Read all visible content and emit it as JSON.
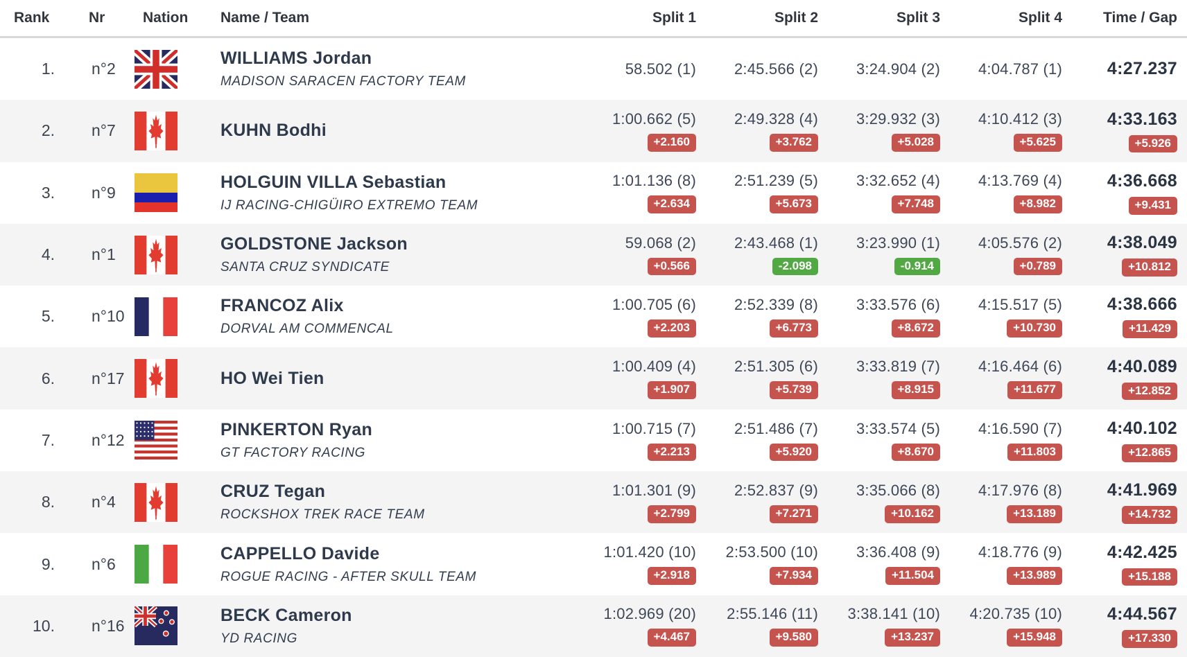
{
  "table": {
    "headers": {
      "rank": "Rank",
      "nr": "Nr",
      "nation": "Nation",
      "name_team": "Name / Team",
      "split1": "Split 1",
      "split2": "Split 2",
      "split3": "Split 3",
      "split4": "Split 4",
      "time_gap": "Time / Gap"
    },
    "rows": [
      {
        "rank": "1.",
        "nr": "n°2",
        "nation": "gbr",
        "nation_icon": "flag-great-britain-icon",
        "name": "WILLIAMS Jordan",
        "team": "MADISON SARACEN FACTORY TEAM",
        "splits": [
          {
            "value": "58.502 (1)",
            "gap": null
          },
          {
            "value": "2:45.566 (2)",
            "gap": null
          },
          {
            "value": "3:24.904 (2)",
            "gap": null
          },
          {
            "value": "4:04.787 (1)",
            "gap": null
          }
        ],
        "time": "4:27.237",
        "time_gap": null
      },
      {
        "rank": "2.",
        "nr": "n°7",
        "nation": "can",
        "nation_icon": "flag-canada-icon",
        "name": "KUHN Bodhi",
        "team": null,
        "splits": [
          {
            "value": "1:00.662 (5)",
            "gap": "+2.160"
          },
          {
            "value": "2:49.328 (4)",
            "gap": "+3.762"
          },
          {
            "value": "3:29.932 (3)",
            "gap": "+5.028"
          },
          {
            "value": "4:10.412 (3)",
            "gap": "+5.625"
          }
        ],
        "time": "4:33.163",
        "time_gap": "+5.926"
      },
      {
        "rank": "3.",
        "nr": "n°9",
        "nation": "col",
        "nation_icon": "flag-colombia-icon",
        "name": "HOLGUIN VILLA Sebastian",
        "team": "IJ RACING-CHIGÜIRO EXTREMO TEAM",
        "splits": [
          {
            "value": "1:01.136 (8)",
            "gap": "+2.634"
          },
          {
            "value": "2:51.239 (5)",
            "gap": "+5.673"
          },
          {
            "value": "3:32.652 (4)",
            "gap": "+7.748"
          },
          {
            "value": "4:13.769 (4)",
            "gap": "+8.982"
          }
        ],
        "time": "4:36.668",
        "time_gap": "+9.431"
      },
      {
        "rank": "4.",
        "nr": "n°1",
        "nation": "can",
        "nation_icon": "flag-canada-icon",
        "name": "GOLDSTONE Jackson",
        "team": "SANTA CRUZ SYNDICATE",
        "splits": [
          {
            "value": "59.068 (2)",
            "gap": "+0.566"
          },
          {
            "value": "2:43.468 (1)",
            "gap": "-2.098"
          },
          {
            "value": "3:23.990 (1)",
            "gap": "-0.914"
          },
          {
            "value": "4:05.576 (2)",
            "gap": "+0.789"
          }
        ],
        "time": "4:38.049",
        "time_gap": "+10.812"
      },
      {
        "rank": "5.",
        "nr": "n°10",
        "nation": "fra",
        "nation_icon": "flag-france-icon",
        "name": "FRANCOZ Alix",
        "team": "DORVAL AM COMMENCAL",
        "splits": [
          {
            "value": "1:00.705 (6)",
            "gap": "+2.203"
          },
          {
            "value": "2:52.339 (8)",
            "gap": "+6.773"
          },
          {
            "value": "3:33.576 (6)",
            "gap": "+8.672"
          },
          {
            "value": "4:15.517 (5)",
            "gap": "+10.730"
          }
        ],
        "time": "4:38.666",
        "time_gap": "+11.429"
      },
      {
        "rank": "6.",
        "nr": "n°17",
        "nation": "can",
        "nation_icon": "flag-canada-icon",
        "name": "HO Wei Tien",
        "team": null,
        "splits": [
          {
            "value": "1:00.409 (4)",
            "gap": "+1.907"
          },
          {
            "value": "2:51.305 (6)",
            "gap": "+5.739"
          },
          {
            "value": "3:33.819 (7)",
            "gap": "+8.915"
          },
          {
            "value": "4:16.464 (6)",
            "gap": "+11.677"
          }
        ],
        "time": "4:40.089",
        "time_gap": "+12.852"
      },
      {
        "rank": "7.",
        "nr": "n°12",
        "nation": "usa",
        "nation_icon": "flag-usa-icon",
        "name": "PINKERTON Ryan",
        "team": "GT FACTORY RACING",
        "splits": [
          {
            "value": "1:00.715 (7)",
            "gap": "+2.213"
          },
          {
            "value": "2:51.486 (7)",
            "gap": "+5.920"
          },
          {
            "value": "3:33.574 (5)",
            "gap": "+8.670"
          },
          {
            "value": "4:16.590 (7)",
            "gap": "+11.803"
          }
        ],
        "time": "4:40.102",
        "time_gap": "+12.865"
      },
      {
        "rank": "8.",
        "nr": "n°4",
        "nation": "can",
        "nation_icon": "flag-canada-icon",
        "name": "CRUZ Tegan",
        "team": "ROCKSHOX TREK RACE TEAM",
        "splits": [
          {
            "value": "1:01.301 (9)",
            "gap": "+2.799"
          },
          {
            "value": "2:52.837 (9)",
            "gap": "+7.271"
          },
          {
            "value": "3:35.066 (8)",
            "gap": "+10.162"
          },
          {
            "value": "4:17.976 (8)",
            "gap": "+13.189"
          }
        ],
        "time": "4:41.969",
        "time_gap": "+14.732"
      },
      {
        "rank": "9.",
        "nr": "n°6",
        "nation": "ita",
        "nation_icon": "flag-italy-icon",
        "name": "CAPPELLO Davide",
        "team": "ROGUE RACING - AFTER SKULL TEAM",
        "splits": [
          {
            "value": "1:01.420 (10)",
            "gap": "+2.918"
          },
          {
            "value": "2:53.500 (10)",
            "gap": "+7.934"
          },
          {
            "value": "3:36.408 (9)",
            "gap": "+11.504"
          },
          {
            "value": "4:18.776 (9)",
            "gap": "+13.989"
          }
        ],
        "time": "4:42.425",
        "time_gap": "+15.188"
      },
      {
        "rank": "10.",
        "nr": "n°16",
        "nation": "nzl",
        "nation_icon": "flag-new-zealand-icon",
        "name": "BECK Cameron",
        "team": "YD RACING",
        "splits": [
          {
            "value": "1:02.969 (20)",
            "gap": "+4.467"
          },
          {
            "value": "2:55.146 (11)",
            "gap": "+9.580"
          },
          {
            "value": "3:38.141 (10)",
            "gap": "+13.237"
          },
          {
            "value": "4:20.735 (10)",
            "gap": "+15.948"
          }
        ],
        "time": "4:44.567",
        "time_gap": "+17.330"
      }
    ]
  },
  "colors": {
    "gap_positive_bg": "#c5534e",
    "gap_negative_bg": "#52a944",
    "row_alt_bg": "#f4f4f4",
    "header_border": "#d8d8d8",
    "text_primary": "#2e3a4c",
    "time_bold": "#2b3442"
  }
}
